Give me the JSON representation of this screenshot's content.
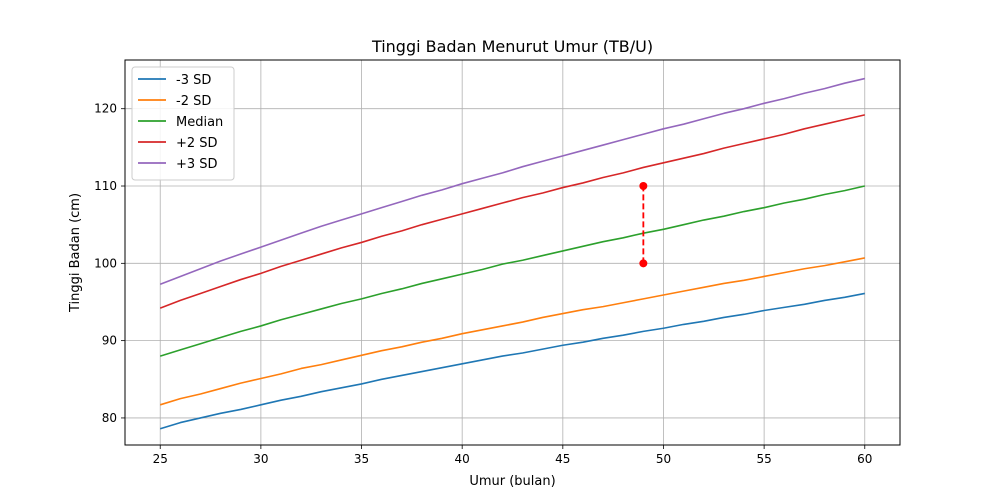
{
  "chart_data": {
    "type": "line",
    "title": "Tinggi Badan Menurut Umur (TB/U)",
    "xlabel": "Umur (bulan)",
    "ylabel": "Tinggi Badan (cm)",
    "xlim": [
      23.25,
      61.75
    ],
    "ylim": [
      76.5,
      126.3
    ],
    "xticks": [
      25,
      30,
      35,
      40,
      45,
      50,
      55,
      60
    ],
    "yticks": [
      80,
      90,
      100,
      110,
      120
    ],
    "grid": true,
    "legend_position": "top-left",
    "x": [
      25,
      26,
      27,
      28,
      29,
      30,
      31,
      32,
      33,
      34,
      35,
      36,
      37,
      38,
      39,
      40,
      41,
      42,
      43,
      44,
      45,
      46,
      47,
      48,
      49,
      50,
      51,
      52,
      53,
      54,
      55,
      56,
      57,
      58,
      59,
      60
    ],
    "series": [
      {
        "name": "-3 SD",
        "color": "#1f77b4",
        "values": [
          78.6,
          79.4,
          80.0,
          80.6,
          81.1,
          81.7,
          82.3,
          82.8,
          83.4,
          83.9,
          84.4,
          85.0,
          85.5,
          86.0,
          86.5,
          87.0,
          87.5,
          88.0,
          88.4,
          88.9,
          89.4,
          89.8,
          90.3,
          90.7,
          91.2,
          91.6,
          92.1,
          92.5,
          93.0,
          93.4,
          93.9,
          94.3,
          94.7,
          95.2,
          95.6,
          96.1
        ]
      },
      {
        "name": "-2 SD",
        "color": "#ff7f0e",
        "values": [
          81.7,
          82.5,
          83.1,
          83.8,
          84.5,
          85.1,
          85.7,
          86.4,
          86.9,
          87.5,
          88.1,
          88.7,
          89.2,
          89.8,
          90.3,
          90.9,
          91.4,
          91.9,
          92.4,
          93.0,
          93.5,
          94.0,
          94.4,
          94.9,
          95.4,
          95.9,
          96.4,
          96.9,
          97.4,
          97.8,
          98.3,
          98.8,
          99.3,
          99.7,
          100.2,
          100.7
        ]
      },
      {
        "name": "Median",
        "color": "#2ca02c",
        "values": [
          88.0,
          88.8,
          89.6,
          90.4,
          91.2,
          91.9,
          92.7,
          93.4,
          94.1,
          94.8,
          95.4,
          96.1,
          96.7,
          97.4,
          98.0,
          98.6,
          99.2,
          99.9,
          100.4,
          101.0,
          101.6,
          102.2,
          102.8,
          103.3,
          103.9,
          104.4,
          105.0,
          105.6,
          106.1,
          106.7,
          107.2,
          107.8,
          108.3,
          108.9,
          109.4,
          110.0
        ]
      },
      {
        "name": "+2 SD",
        "color": "#d62728",
        "values": [
          94.2,
          95.2,
          96.1,
          97.0,
          97.9,
          98.7,
          99.6,
          100.4,
          101.2,
          102.0,
          102.7,
          103.5,
          104.2,
          105.0,
          105.7,
          106.4,
          107.1,
          107.8,
          108.5,
          109.1,
          109.8,
          110.4,
          111.1,
          111.7,
          112.4,
          113.0,
          113.6,
          114.2,
          114.9,
          115.5,
          116.1,
          116.7,
          117.4,
          118.0,
          118.6,
          119.2
        ]
      },
      {
        "name": "+3 SD",
        "color": "#9467bd",
        "values": [
          97.3,
          98.3,
          99.3,
          100.3,
          101.2,
          102.1,
          103.0,
          103.9,
          104.8,
          105.6,
          106.4,
          107.2,
          108.0,
          108.8,
          109.5,
          110.3,
          111.0,
          111.7,
          112.5,
          113.2,
          113.9,
          114.6,
          115.3,
          116.0,
          116.7,
          117.4,
          118.0,
          118.7,
          119.4,
          120.0,
          120.7,
          121.3,
          122.0,
          122.6,
          123.3,
          123.9
        ]
      }
    ],
    "annotation": {
      "type": "dashed-segment",
      "color": "#ff0000",
      "x": 49,
      "y_from": 100,
      "y_to": 110
    }
  }
}
